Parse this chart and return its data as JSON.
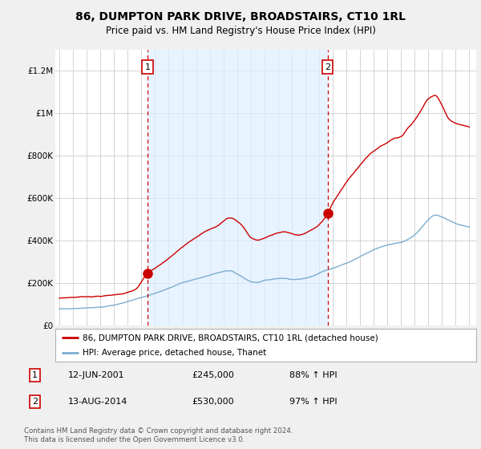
{
  "title": "86, DUMPTON PARK DRIVE, BROADSTAIRS, CT10 1RL",
  "subtitle": "Price paid vs. HM Land Registry's House Price Index (HPI)",
  "title_fontsize": 10,
  "subtitle_fontsize": 8.5,
  "background_color": "#f0f0f0",
  "plot_bg_color": "#ffffff",
  "legend_label_red": "86, DUMPTON PARK DRIVE, BROADSTAIRS, CT10 1RL (detached house)",
  "legend_label_blue": "HPI: Average price, detached house, Thanet",
  "annotation1_date": "12-JUN-2001",
  "annotation1_price": "£245,000",
  "annotation1_hpi": "88% ↑ HPI",
  "annotation2_date": "13-AUG-2014",
  "annotation2_price": "£530,000",
  "annotation2_hpi": "97% ↑ HPI",
  "footnote": "Contains HM Land Registry data © Crown copyright and database right 2024.\nThis data is licensed under the Open Government Licence v3.0.",
  "ylabel_ticks": [
    "£0",
    "£200K",
    "£400K",
    "£600K",
    "£800K",
    "£1M",
    "£1.2M"
  ],
  "ytick_values": [
    0,
    200000,
    400000,
    600000,
    800000,
    1000000,
    1200000
  ],
  "ylim": [
    0,
    1300000
  ],
  "red_color": "#cc0000",
  "blue_color": "#7aadcf",
  "shade_color": "#ddeeff",
  "vline_color": "#cc0000",
  "grid_color": "#cccccc",
  "sale1_x": 2001.45,
  "sale1_y": 245000,
  "sale2_x": 2014.62,
  "sale2_y": 530000,
  "xlim_left": 1994.7,
  "xlim_right": 2025.5,
  "xtick_years": [
    1995,
    1996,
    1997,
    1998,
    1999,
    2000,
    2001,
    2002,
    2003,
    2004,
    2005,
    2006,
    2007,
    2008,
    2009,
    2010,
    2011,
    2012,
    2013,
    2014,
    2015,
    2016,
    2017,
    2018,
    2019,
    2020,
    2021,
    2022,
    2023,
    2024,
    2025
  ]
}
